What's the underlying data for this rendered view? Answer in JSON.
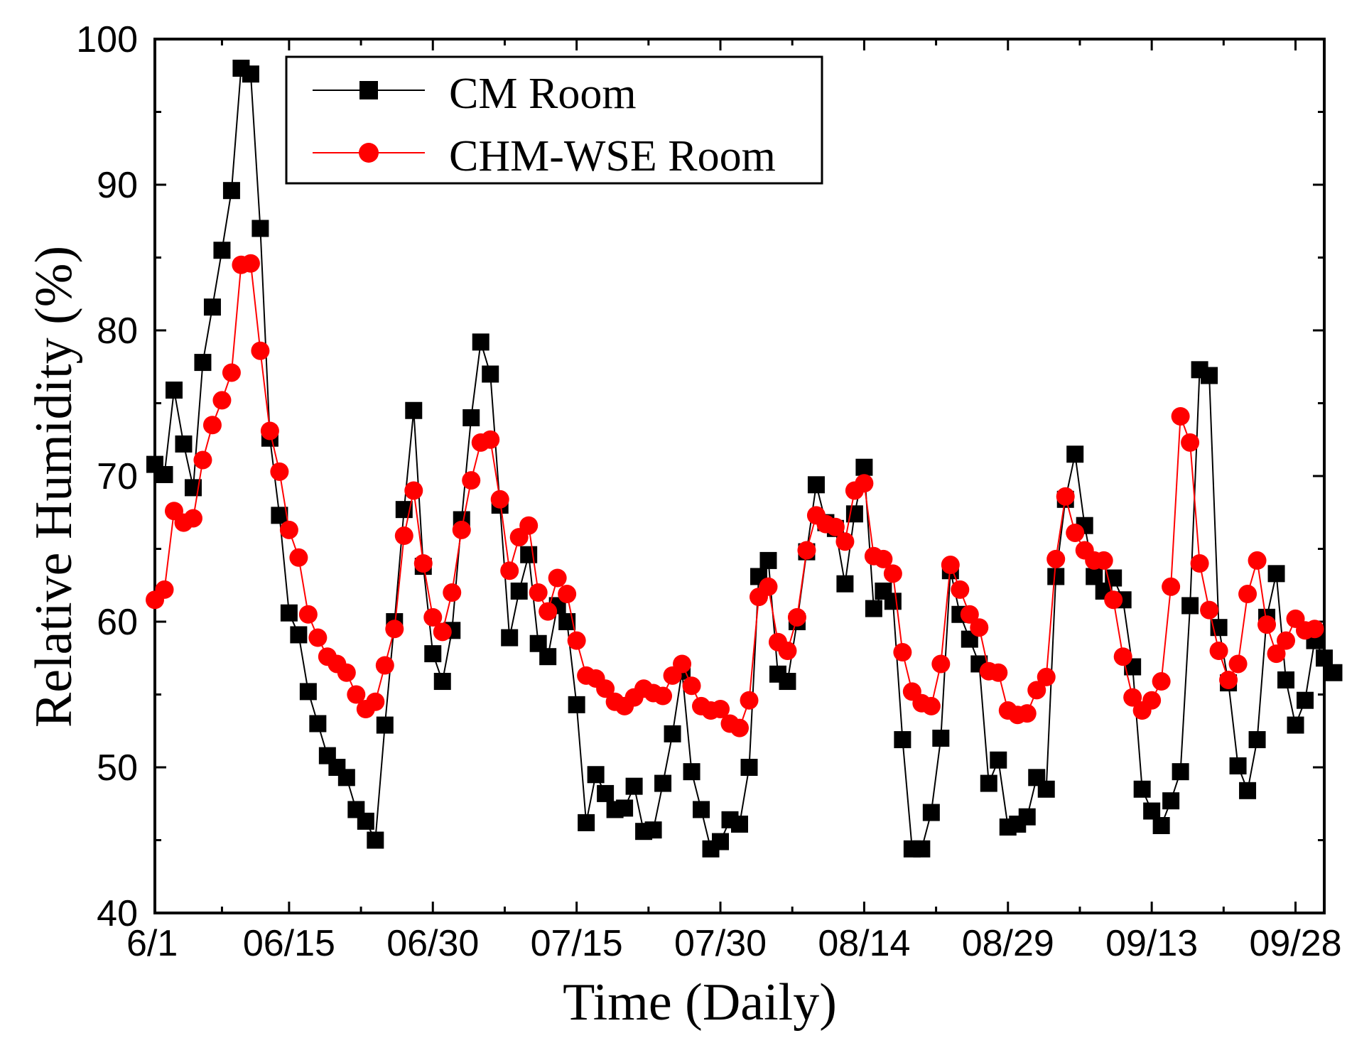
{
  "chart_data": {
    "type": "line",
    "title": "",
    "xlabel": "Time (Daily)",
    "ylabel": "Relative Humidity (%)",
    "ylim": [
      40,
      100
    ],
    "xlim": [
      0,
      122
    ],
    "yticks": [
      40,
      50,
      60,
      70,
      80,
      90,
      100
    ],
    "xticks": [
      {
        "day": 0,
        "label": "6/1"
      },
      {
        "day": 14,
        "label": "06/15"
      },
      {
        "day": 29,
        "label": "06/30"
      },
      {
        "day": 44,
        "label": "07/15"
      },
      {
        "day": 59,
        "label": "07/30"
      },
      {
        "day": 74,
        "label": "08/14"
      },
      {
        "day": 89,
        "label": "08/29"
      },
      {
        "day": 104,
        "label": "09/13"
      },
      {
        "day": 119,
        "label": "09/28"
      }
    ],
    "series": [
      {
        "name": "CM  Room",
        "color": "#000000",
        "marker": "square",
        "values": [
          70.8,
          70.1,
          75.9,
          72.2,
          69.2,
          77.8,
          81.6,
          85.5,
          89.6,
          98.0,
          97.6,
          87.0,
          72.6,
          67.3,
          60.6,
          59.1,
          55.2,
          53.0,
          50.8,
          50.0,
          49.3,
          47.1,
          46.3,
          45.0,
          52.9,
          60.0,
          67.7,
          74.5,
          63.8,
          57.8,
          55.9,
          59.4,
          67.0,
          74.0,
          79.2,
          77.0,
          68.0,
          58.9,
          62.1,
          64.6,
          58.5,
          57.6,
          61.1,
          60.0,
          54.3,
          46.2,
          49.5,
          48.2,
          47.1,
          47.2,
          48.7,
          45.6,
          45.7,
          48.9,
          52.3,
          56.6,
          49.7,
          47.1,
          44.4,
          44.9,
          46.4,
          46.1,
          50.0,
          63.1,
          64.2,
          56.4,
          55.9,
          60.0,
          64.8,
          69.4,
          66.8,
          66.4,
          62.6,
          67.4,
          70.6,
          60.9,
          62.1,
          61.4,
          51.9,
          44.4,
          44.4,
          46.9,
          52.0,
          63.5,
          60.5,
          58.8,
          57.1,
          48.9,
          50.5,
          45.9,
          46.1,
          46.6,
          49.3,
          48.5,
          63.1,
          68.4,
          71.5,
          66.6,
          63.1,
          62.1,
          63.0,
          61.5,
          56.9,
          48.5,
          47.0,
          46.0,
          47.7,
          49.7,
          61.1,
          77.3,
          76.9,
          59.6,
          55.8,
          50.1,
          48.4,
          51.9,
          60.3,
          63.3,
          56.0,
          52.9,
          54.6,
          58.7,
          57.5,
          56.5
        ]
      },
      {
        "name": "CHM-WSE Room",
        "color": "#ff0000",
        "marker": "circle",
        "values": [
          61.5,
          62.2,
          67.6,
          66.8,
          67.1,
          71.1,
          73.5,
          75.2,
          77.1,
          84.5,
          84.6,
          78.6,
          73.1,
          70.3,
          66.3,
          64.4,
          60.5,
          58.9,
          57.6,
          57.1,
          56.5,
          55.0,
          54.0,
          54.5,
          57.0,
          59.5,
          65.9,
          69.0,
          64.0,
          60.3,
          59.3,
          62.0,
          66.3,
          69.7,
          72.3,
          72.5,
          68.4,
          63.5,
          65.8,
          66.6,
          62.0,
          60.7,
          63.0,
          61.9,
          58.7,
          56.3,
          56.1,
          55.4,
          54.5,
          54.2,
          54.8,
          55.4,
          55.1,
          54.9,
          56.3,
          57.1,
          55.6,
          54.2,
          53.9,
          54.0,
          53.0,
          52.7,
          54.6,
          61.7,
          62.4,
          58.6,
          58.0,
          60.3,
          64.9,
          67.3,
          66.7,
          66.5,
          65.5,
          69.0,
          69.5,
          64.5,
          64.3,
          63.3,
          57.9,
          55.2,
          54.4,
          54.2,
          57.1,
          63.9,
          62.2,
          60.5,
          59.6,
          56.6,
          56.5,
          53.9,
          53.6,
          53.7,
          55.3,
          56.2,
          64.3,
          68.6,
          66.1,
          64.9,
          64.2,
          64.2,
          61.5,
          57.6,
          54.8,
          53.9,
          54.6,
          55.9,
          62.4,
          74.1,
          72.3,
          64.0,
          60.8,
          58.0,
          56.0,
          57.1,
          61.9,
          64.2,
          59.8,
          57.8,
          58.7,
          60.2,
          59.4,
          59.5
        ]
      }
    ],
    "legend": {
      "position": "top-left",
      "entries": [
        "CM  Room",
        "CHM-WSE Room"
      ]
    }
  }
}
